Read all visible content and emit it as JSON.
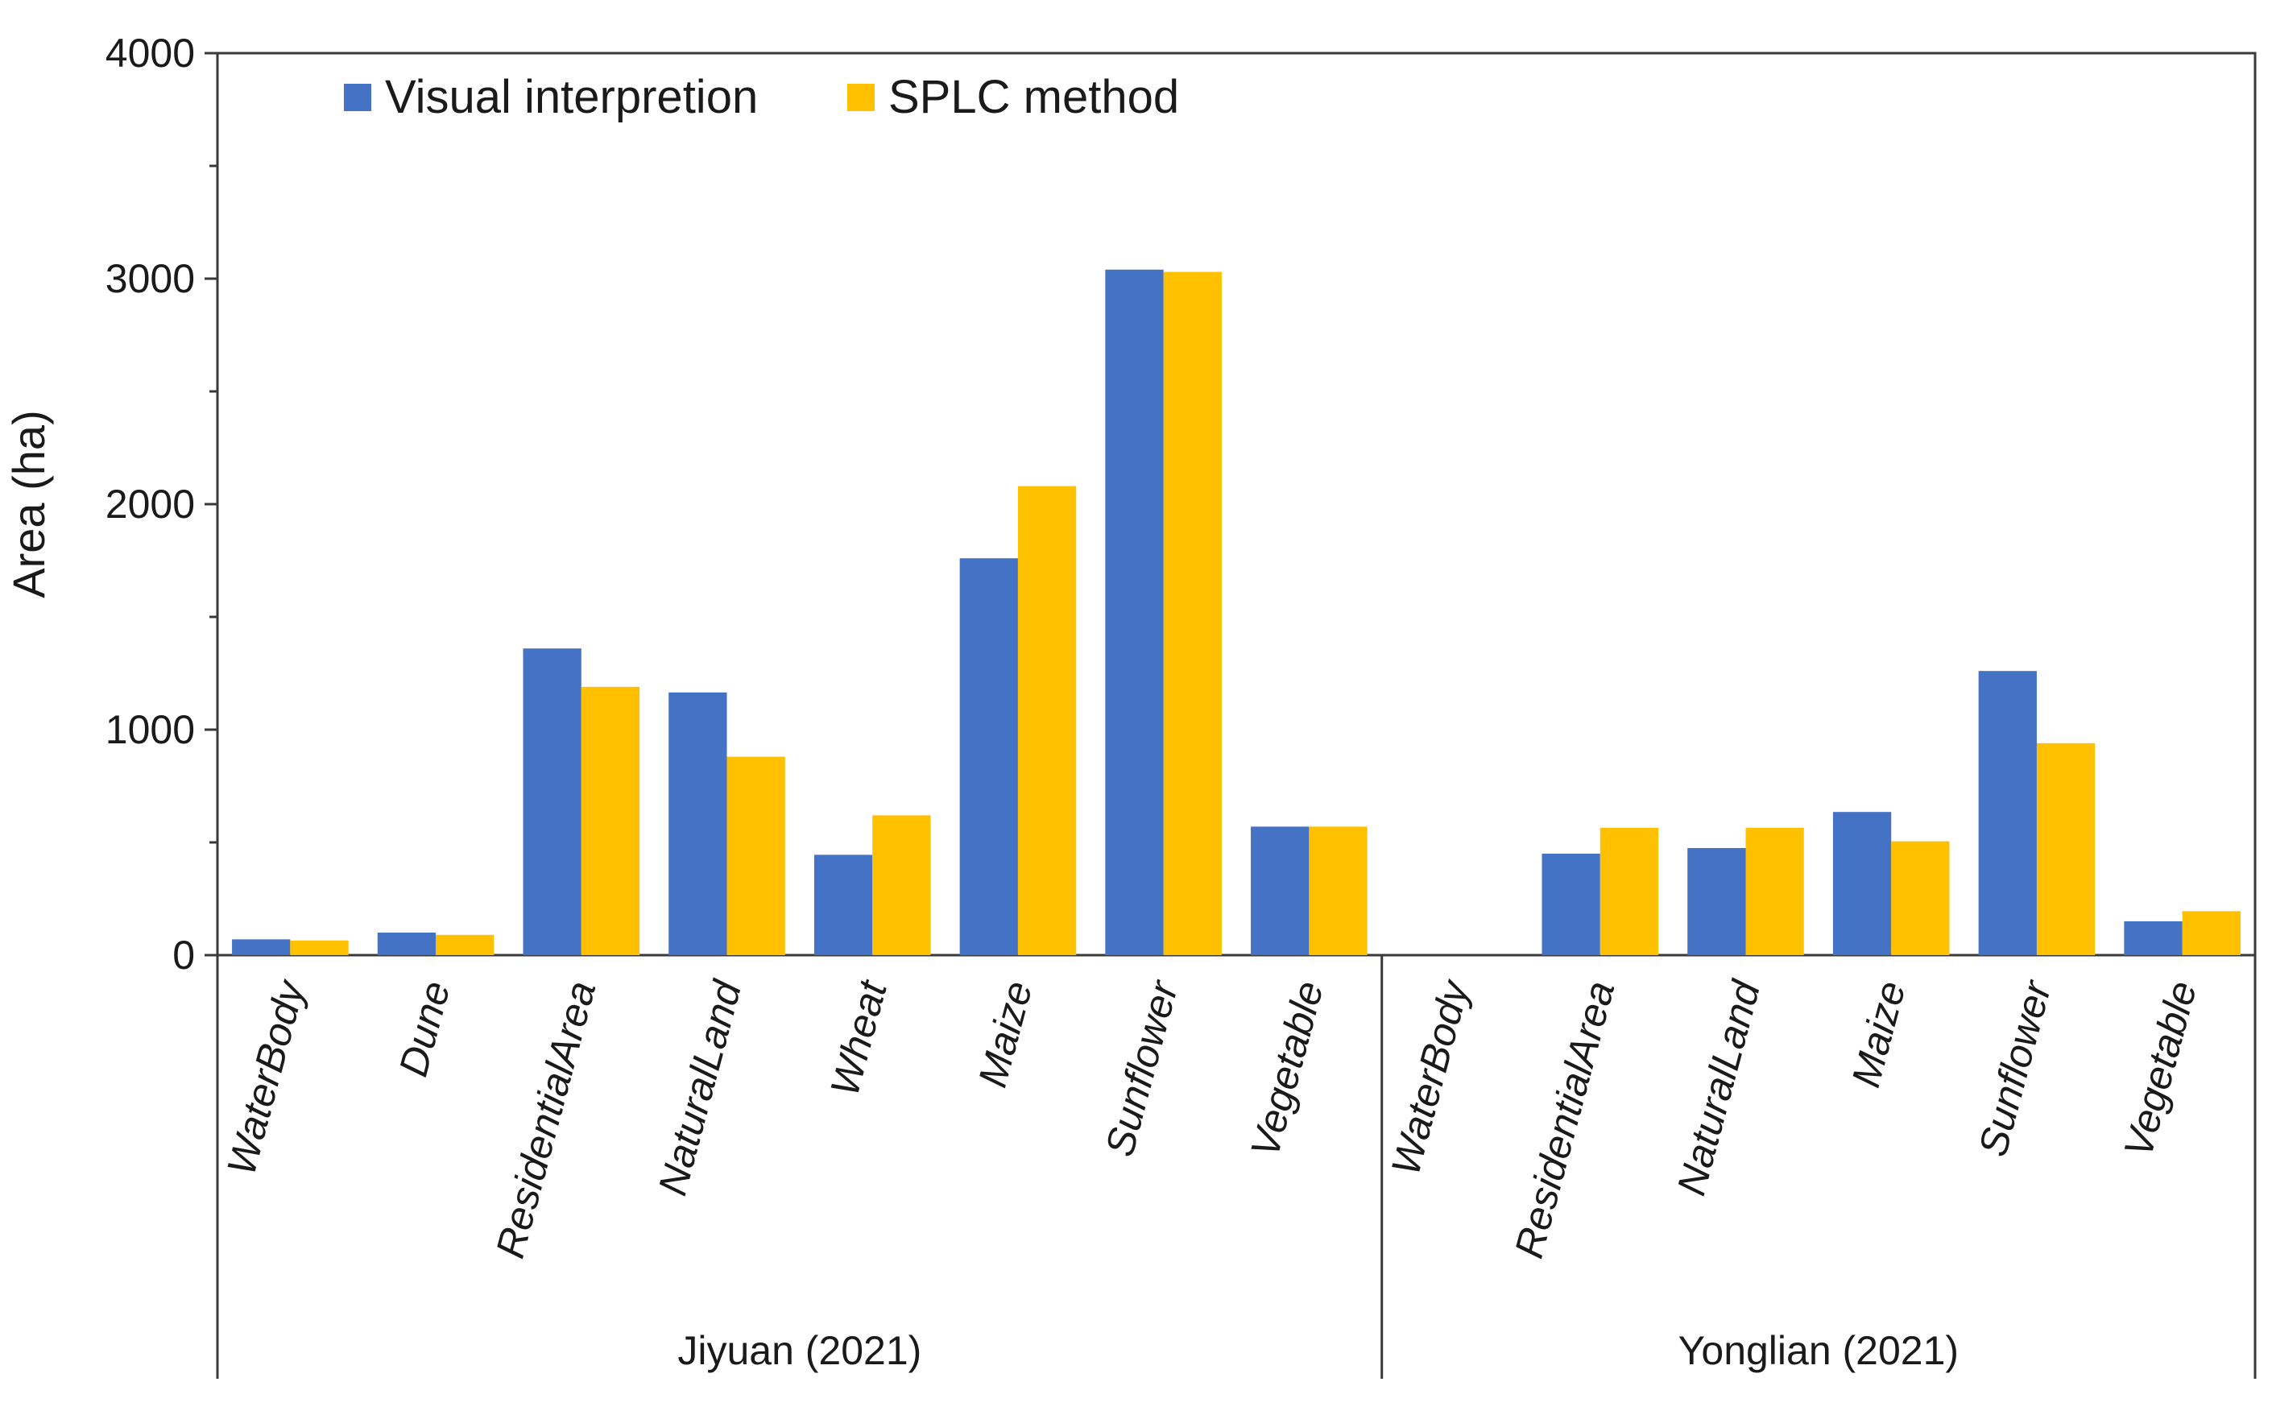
{
  "chart_data": {
    "type": "bar",
    "title": "",
    "xlabel": "",
    "ylabel": "Area (ha)",
    "ylim": [
      0,
      4000
    ],
    "yticks": [
      0,
      1000,
      2000,
      3000,
      4000
    ],
    "grid": false,
    "legend_position": "top-left",
    "colors": {
      "Visual interpretion": "#4472C4",
      "SPLC method": "#FFC000"
    },
    "groups": [
      {
        "label": "Jiyuan (2021)",
        "categories": [
          "WaterBody",
          "Dune",
          "ResidentialArea",
          "NaturalLand",
          "Wheat",
          "Maize",
          "Sunflower",
          "Vegetable"
        ]
      },
      {
        "label": "Yonglian (2021)",
        "categories": [
          "WaterBody",
          "ResidentialArea",
          "NaturalLand",
          "Maize",
          "Sunflower",
          "Vegetable"
        ]
      }
    ],
    "series": [
      {
        "name": "Visual interpretion",
        "values": [
          70,
          100,
          1360,
          1165,
          445,
          1760,
          3040,
          570,
          0,
          450,
          475,
          635,
          1260,
          150
        ]
      },
      {
        "name": "SPLC method",
        "values": [
          65,
          90,
          1190,
          880,
          620,
          2080,
          3030,
          570,
          0,
          565,
          565,
          505,
          940,
          195
        ]
      }
    ]
  }
}
